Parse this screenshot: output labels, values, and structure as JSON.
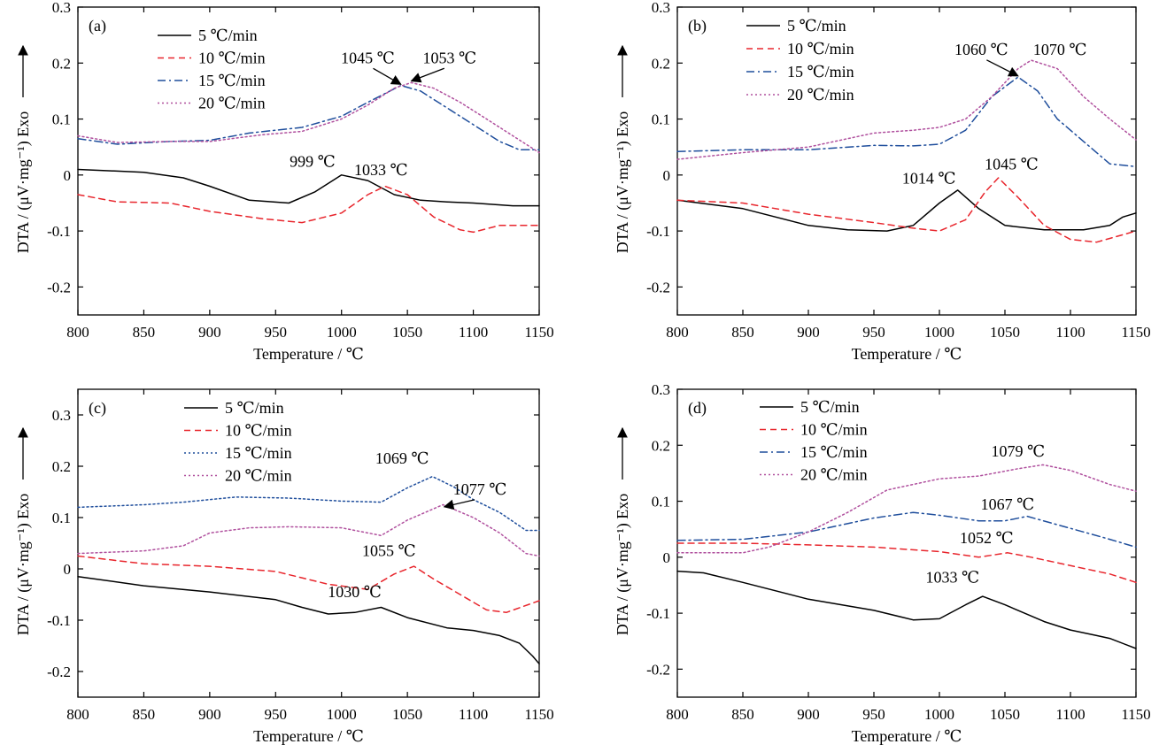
{
  "colors": {
    "5": "#000000",
    "10": "#e8262d",
    "15": "#1f4e9c",
    "20": "#b0509e"
  },
  "chart_data": [
    {
      "id": "a",
      "type": "line",
      "panel_label": "(a)",
      "xlabel": "Temperature / ℃",
      "ylabel": "DTA / (μV·mg⁻¹)  Exo",
      "xlim": [
        800,
        1150
      ],
      "ylim": [
        -0.25,
        0.3
      ],
      "xticks": [
        800,
        850,
        900,
        950,
        1000,
        1050,
        1100,
        1150
      ],
      "yticks": [
        -0.2,
        -0.1,
        0,
        0.1,
        0.2,
        0.3
      ],
      "ytick_labels": [
        "-0.2",
        "-0.1",
        "0",
        "0.1",
        "0.2",
        "0.3"
      ],
      "legend_placement": "top-left",
      "series": [
        {
          "key": "5",
          "name": "5 ℃/min",
          "style": "solid",
          "x": [
            800,
            850,
            880,
            900,
            930,
            960,
            980,
            1000,
            1020,
            1040,
            1060,
            1080,
            1100,
            1130,
            1150
          ],
          "y": [
            0.01,
            0.005,
            -0.005,
            -0.02,
            -0.045,
            -0.05,
            -0.03,
            0.0,
            -0.01,
            -0.035,
            -0.045,
            -0.048,
            -0.05,
            -0.055,
            -0.055
          ]
        },
        {
          "key": "10",
          "name": "10 ℃/min",
          "style": "dashed",
          "x": [
            800,
            830,
            870,
            900,
            940,
            970,
            1000,
            1020,
            1033,
            1050,
            1070,
            1090,
            1100,
            1120,
            1150
          ],
          "y": [
            -0.035,
            -0.048,
            -0.05,
            -0.065,
            -0.078,
            -0.085,
            -0.068,
            -0.035,
            -0.02,
            -0.035,
            -0.075,
            -0.098,
            -0.102,
            -0.09,
            -0.09
          ]
        },
        {
          "key": "15",
          "name": "15 ℃/min",
          "style": "dashdot",
          "x": [
            800,
            830,
            870,
            900,
            930,
            970,
            1000,
            1020,
            1045,
            1060,
            1080,
            1100,
            1120,
            1135,
            1150
          ],
          "y": [
            0.065,
            0.055,
            0.06,
            0.062,
            0.075,
            0.085,
            0.105,
            0.13,
            0.16,
            0.15,
            0.12,
            0.09,
            0.06,
            0.045,
            0.045
          ]
        },
        {
          "key": "20",
          "name": "20 ℃/min",
          "style": "dotted",
          "x": [
            800,
            830,
            870,
            900,
            940,
            970,
            1000,
            1020,
            1040,
            1053,
            1070,
            1090,
            1110,
            1130,
            1150
          ],
          "y": [
            0.07,
            0.058,
            0.06,
            0.06,
            0.072,
            0.078,
            0.1,
            0.125,
            0.155,
            0.165,
            0.155,
            0.13,
            0.1,
            0.07,
            0.04
          ]
        }
      ],
      "annotations": [
        {
          "text": "999 ℃",
          "x": 978,
          "y": 0.015,
          "ax": 1000,
          "ay": 0.003,
          "arrow": false
        },
        {
          "text": "1033 ℃",
          "x": 1030,
          "y": 0.0,
          "arrow": false
        },
        {
          "text": "1045 ℃",
          "x": 1020,
          "y": 0.2,
          "ax": 1045,
          "ay": 0.162,
          "arrow": true
        },
        {
          "text": "1053 ℃",
          "x": 1082,
          "y": 0.2,
          "ax": 1053,
          "ay": 0.168,
          "arrow": true
        }
      ]
    },
    {
      "id": "b",
      "type": "line",
      "panel_label": "(b)",
      "xlabel": "Temperature / ℃",
      "ylabel": "DTA / (μV·mg⁻¹)  Exo",
      "xlim": [
        800,
        1150
      ],
      "ylim": [
        -0.25,
        0.3
      ],
      "xticks": [
        800,
        850,
        900,
        950,
        1000,
        1050,
        1100,
        1150
      ],
      "yticks": [
        -0.2,
        -0.1,
        0,
        0.1,
        0.2,
        0.3
      ],
      "ytick_labels": [
        "-0.2",
        "-0.1",
        "0",
        "0.1",
        "0.2",
        "0.3"
      ],
      "legend_placement": "top-left",
      "series": [
        {
          "key": "5",
          "name": "5 ℃/min",
          "style": "solid",
          "x": [
            800,
            850,
            900,
            930,
            960,
            980,
            1000,
            1014,
            1030,
            1050,
            1080,
            1110,
            1130,
            1140,
            1150
          ],
          "y": [
            -0.045,
            -0.06,
            -0.09,
            -0.098,
            -0.1,
            -0.09,
            -0.05,
            -0.027,
            -0.06,
            -0.09,
            -0.098,
            -0.098,
            -0.09,
            -0.075,
            -0.068
          ]
        },
        {
          "key": "10",
          "name": "10 ℃/min",
          "style": "dashed",
          "x": [
            800,
            850,
            900,
            950,
            980,
            1000,
            1020,
            1035,
            1045,
            1060,
            1080,
            1100,
            1120,
            1150
          ],
          "y": [
            -0.045,
            -0.05,
            -0.07,
            -0.085,
            -0.095,
            -0.1,
            -0.08,
            -0.03,
            -0.005,
            -0.04,
            -0.09,
            -0.115,
            -0.12,
            -0.1
          ]
        },
        {
          "key": "15",
          "name": "15 ℃/min",
          "style": "dashdot",
          "x": [
            800,
            850,
            900,
            950,
            980,
            1000,
            1020,
            1040,
            1060,
            1075,
            1090,
            1110,
            1130,
            1150
          ],
          "y": [
            0.042,
            0.045,
            0.045,
            0.053,
            0.052,
            0.055,
            0.08,
            0.14,
            0.175,
            0.15,
            0.1,
            0.06,
            0.02,
            0.015
          ]
        },
        {
          "key": "20",
          "name": "20 ℃/min",
          "style": "dotted",
          "x": [
            800,
            850,
            900,
            950,
            980,
            1000,
            1020,
            1040,
            1060,
            1070,
            1090,
            1110,
            1130,
            1150
          ],
          "y": [
            0.028,
            0.04,
            0.05,
            0.075,
            0.08,
            0.085,
            0.1,
            0.14,
            0.19,
            0.205,
            0.19,
            0.14,
            0.1,
            0.063
          ]
        }
      ],
      "annotations": [
        {
          "text": "1060 ℃",
          "x": 1032,
          "y": 0.215,
          "ax": 1060,
          "ay": 0.177,
          "arrow": true
        },
        {
          "text": "1070 ℃",
          "x": 1092,
          "y": 0.215,
          "arrow": false
        },
        {
          "text": "1014 ℃",
          "x": 992,
          "y": -0.015,
          "arrow": false
        },
        {
          "text": "1045 ℃",
          "x": 1055,
          "y": 0.01,
          "arrow": false
        }
      ]
    },
    {
      "id": "c",
      "type": "line",
      "panel_label": "(c)",
      "xlabel": "Temperature / ℃",
      "ylabel": "DTA / (μV·mg⁻¹)  Exo",
      "xlim": [
        800,
        1150
      ],
      "ylim": [
        -0.25,
        0.35
      ],
      "xticks": [
        800,
        850,
        900,
        950,
        1000,
        1050,
        1100,
        1150
      ],
      "yticks": [
        -0.2,
        -0.1,
        0,
        0.1,
        0.2,
        0.3
      ],
      "ytick_labels": [
        "-0.2",
        "-0.1",
        "0",
        "0.1",
        "0.2",
        "0.3"
      ],
      "legend_placement": "top-left",
      "series": [
        {
          "key": "5",
          "name": "5 ℃/min",
          "style": "solid",
          "x": [
            800,
            850,
            900,
            950,
            970,
            990,
            1010,
            1030,
            1050,
            1080,
            1100,
            1120,
            1135,
            1145,
            1150
          ],
          "y": [
            -0.015,
            -0.033,
            -0.045,
            -0.06,
            -0.075,
            -0.088,
            -0.085,
            -0.075,
            -0.095,
            -0.115,
            -0.12,
            -0.13,
            -0.145,
            -0.17,
            -0.185
          ]
        },
        {
          "key": "10",
          "name": "10 ℃/min",
          "style": "dashed",
          "x": [
            800,
            850,
            900,
            950,
            990,
            1020,
            1040,
            1055,
            1070,
            1090,
            1110,
            1125,
            1150
          ],
          "y": [
            0.025,
            0.01,
            0.005,
            -0.005,
            -0.03,
            -0.04,
            -0.01,
            0.005,
            -0.02,
            -0.05,
            -0.08,
            -0.085,
            -0.062
          ]
        },
        {
          "key": "15",
          "name": "15 ℃/min",
          "style": "dotted",
          "x": [
            800,
            850,
            880,
            920,
            960,
            1000,
            1030,
            1050,
            1069,
            1085,
            1100,
            1120,
            1140,
            1150
          ],
          "y": [
            0.12,
            0.125,
            0.13,
            0.14,
            0.138,
            0.132,
            0.13,
            0.158,
            0.18,
            0.16,
            0.135,
            0.11,
            0.075,
            0.075
          ]
        },
        {
          "key": "20",
          "name": "20 ℃/min",
          "style": "dotted",
          "x": [
            800,
            850,
            880,
            900,
            930,
            960,
            1000,
            1030,
            1050,
            1077,
            1100,
            1120,
            1140,
            1150
          ],
          "y": [
            0.03,
            0.035,
            0.045,
            0.07,
            0.08,
            0.082,
            0.08,
            0.065,
            0.095,
            0.125,
            0.1,
            0.07,
            0.03,
            0.025
          ]
        }
      ],
      "annotations": [
        {
          "text": "1069 ℃",
          "x": 1046,
          "y": 0.205,
          "arrow": false
        },
        {
          "text": "1077 ℃",
          "x": 1105,
          "y": 0.145,
          "ax": 1078,
          "ay": 0.121,
          "arrow": true
        },
        {
          "text": "1055 ℃",
          "x": 1036,
          "y": 0.025,
          "arrow": false
        },
        {
          "text": "1030 ℃",
          "x": 1010,
          "y": -0.055,
          "arrow": false
        }
      ]
    },
    {
      "id": "d",
      "type": "line",
      "panel_label": "(d)",
      "xlabel": "Temperature / ℃",
      "ylabel": "DTA / (μV·mg⁻¹)  Exo",
      "xlim": [
        800,
        1150
      ],
      "ylim": [
        -0.25,
        0.3
      ],
      "xticks": [
        800,
        850,
        900,
        950,
        1000,
        1050,
        1100,
        1150
      ],
      "yticks": [
        -0.2,
        -0.1,
        0,
        0.1,
        0.2,
        0.3
      ],
      "ytick_labels": [
        "-0.2",
        "-0.1",
        "0",
        "0.1",
        "0.2",
        "0.3"
      ],
      "legend_placement": "top-left",
      "series": [
        {
          "key": "5",
          "name": "5 ℃/min",
          "style": "solid",
          "x": [
            800,
            820,
            850,
            900,
            950,
            980,
            1000,
            1020,
            1033,
            1050,
            1080,
            1100,
            1120,
            1130,
            1150
          ],
          "y": [
            -0.025,
            -0.028,
            -0.045,
            -0.075,
            -0.095,
            -0.112,
            -0.11,
            -0.085,
            -0.07,
            -0.085,
            -0.115,
            -0.13,
            -0.14,
            -0.145,
            -0.163
          ]
        },
        {
          "key": "10",
          "name": "10 ℃/min",
          "style": "dashed",
          "x": [
            800,
            850,
            900,
            950,
            1000,
            1030,
            1052,
            1070,
            1090,
            1110,
            1130,
            1150
          ],
          "y": [
            0.025,
            0.025,
            0.022,
            0.018,
            0.01,
            0.0,
            0.008,
            0.0,
            -0.01,
            -0.02,
            -0.03,
            -0.045
          ]
        },
        {
          "key": "15",
          "name": "15 ℃/min",
          "style": "dashdot",
          "x": [
            800,
            850,
            900,
            950,
            980,
            1000,
            1030,
            1050,
            1067,
            1090,
            1110,
            1130,
            1150
          ],
          "y": [
            0.03,
            0.032,
            0.045,
            0.07,
            0.08,
            0.075,
            0.065,
            0.065,
            0.073,
            0.058,
            0.045,
            0.032,
            0.018
          ]
        },
        {
          "key": "20",
          "name": "20 ℃/min",
          "style": "dotted",
          "x": [
            800,
            850,
            870,
            900,
            930,
            960,
            1000,
            1030,
            1060,
            1079,
            1100,
            1130,
            1150
          ],
          "y": [
            0.008,
            0.008,
            0.018,
            0.045,
            0.08,
            0.12,
            0.14,
            0.145,
            0.158,
            0.165,
            0.155,
            0.13,
            0.118
          ]
        }
      ],
      "annotations": [
        {
          "text": "1079 ℃",
          "x": 1060,
          "y": 0.18,
          "arrow": false
        },
        {
          "text": "1067 ℃",
          "x": 1052,
          "y": 0.085,
          "arrow": false
        },
        {
          "text": "1052 ℃",
          "x": 1036,
          "y": 0.025,
          "arrow": false
        },
        {
          "text": "1033 ℃",
          "x": 1010,
          "y": -0.045,
          "arrow": false
        }
      ]
    }
  ]
}
